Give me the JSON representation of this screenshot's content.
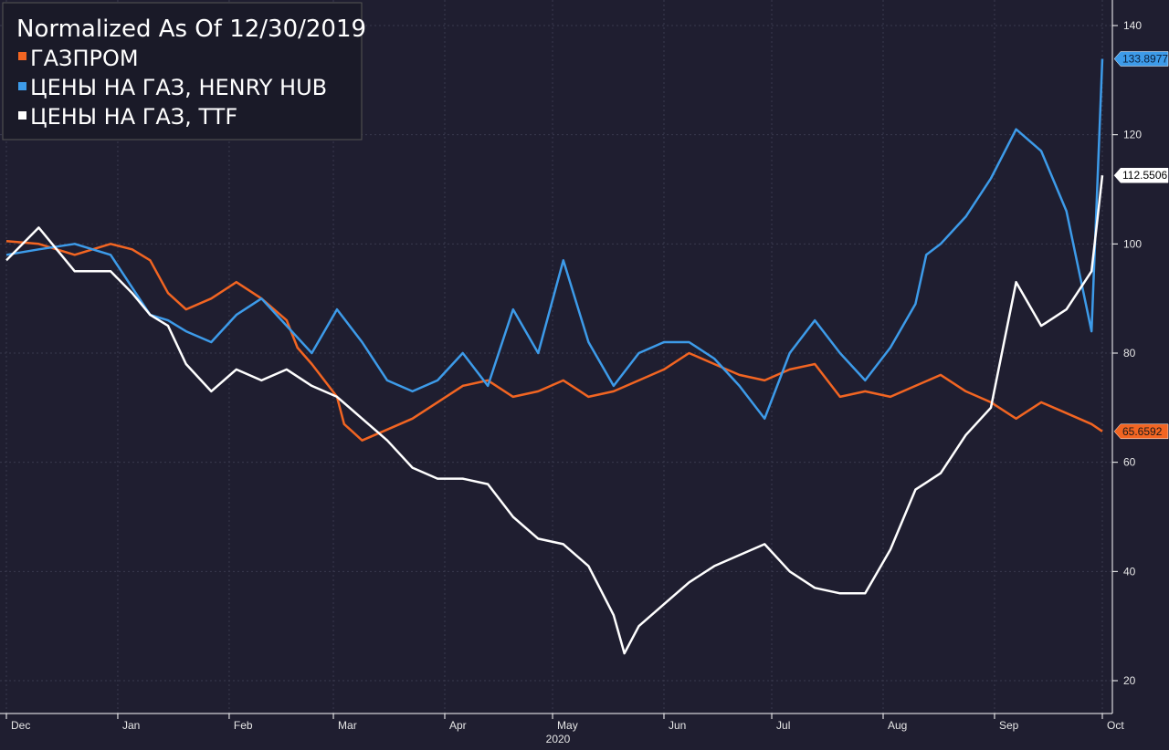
{
  "chart_data": {
    "type": "line",
    "title": "Normalized As Of 12/30/2019",
    "xlabel": "2020",
    "ylabel": "",
    "ylim": [
      15,
      145
    ],
    "yticks": [
      20,
      40,
      60,
      80,
      100,
      120,
      140
    ],
    "grid": true,
    "legend_position": "top-left",
    "x_ticks": [
      {
        "label": "Dec",
        "date": "2019-12-01"
      },
      {
        "label": "Jan",
        "date": "2020-01-01"
      },
      {
        "label": "Feb",
        "date": "2020-02-01"
      },
      {
        "label": "Mar",
        "date": "2020-03-01"
      },
      {
        "label": "Apr",
        "date": "2020-04-01"
      },
      {
        "label": "May",
        "date": "2020-05-01"
      },
      {
        "label": "Jun",
        "date": "2020-06-01"
      },
      {
        "label": "Jul",
        "date": "2020-07-01"
      },
      {
        "label": "Aug",
        "date": "2020-08-01"
      },
      {
        "label": "Sep",
        "date": "2020-09-01"
      },
      {
        "label": "Oct",
        "date": "2020-10-01"
      }
    ],
    "series": [
      {
        "name": "ГАЗПРОМ",
        "color": "#f26522",
        "last_value": "65.6592",
        "points": [
          [
            "2019-12-01",
            100.5
          ],
          [
            "2019-12-10",
            100
          ],
          [
            "2019-12-20",
            98
          ],
          [
            "2019-12-30",
            100
          ],
          [
            "2020-01-05",
            99
          ],
          [
            "2020-01-10",
            97
          ],
          [
            "2020-01-15",
            91
          ],
          [
            "2020-01-20",
            88
          ],
          [
            "2020-01-27",
            90
          ],
          [
            "2020-02-03",
            93
          ],
          [
            "2020-02-10",
            90
          ],
          [
            "2020-02-17",
            86
          ],
          [
            "2020-02-20",
            81
          ],
          [
            "2020-02-24",
            78
          ],
          [
            "2020-03-02",
            72
          ],
          [
            "2020-03-04",
            67
          ],
          [
            "2020-03-09",
            64
          ],
          [
            "2020-03-16",
            66
          ],
          [
            "2020-03-23",
            68
          ],
          [
            "2020-03-30",
            71
          ],
          [
            "2020-04-06",
            74
          ],
          [
            "2020-04-13",
            75
          ],
          [
            "2020-04-20",
            72
          ],
          [
            "2020-04-27",
            73
          ],
          [
            "2020-05-04",
            75
          ],
          [
            "2020-05-11",
            72
          ],
          [
            "2020-05-18",
            73
          ],
          [
            "2020-05-25",
            75
          ],
          [
            "2020-06-01",
            77
          ],
          [
            "2020-06-08",
            80
          ],
          [
            "2020-06-15",
            78
          ],
          [
            "2020-06-22",
            76
          ],
          [
            "2020-06-29",
            75
          ],
          [
            "2020-07-06",
            77
          ],
          [
            "2020-07-13",
            78
          ],
          [
            "2020-07-20",
            72
          ],
          [
            "2020-07-27",
            73
          ],
          [
            "2020-08-03",
            72
          ],
          [
            "2020-08-10",
            74
          ],
          [
            "2020-08-17",
            76
          ],
          [
            "2020-08-24",
            73
          ],
          [
            "2020-08-31",
            71
          ],
          [
            "2020-09-07",
            68
          ],
          [
            "2020-09-14",
            71
          ],
          [
            "2020-09-21",
            69
          ],
          [
            "2020-09-28",
            67
          ],
          [
            "2020-10-01",
            65.6592
          ]
        ]
      },
      {
        "name": "ЦЕНЫ НА ГАЗ, HENRY HUB",
        "color": "#3d9be9",
        "last_value": "133.8977",
        "points": [
          [
            "2019-12-01",
            98
          ],
          [
            "2019-12-10",
            99
          ],
          [
            "2019-12-20",
            100
          ],
          [
            "2019-12-30",
            98
          ],
          [
            "2020-01-05",
            92
          ],
          [
            "2020-01-10",
            87
          ],
          [
            "2020-01-15",
            86
          ],
          [
            "2020-01-20",
            84
          ],
          [
            "2020-01-27",
            82
          ],
          [
            "2020-02-03",
            87
          ],
          [
            "2020-02-10",
            90
          ],
          [
            "2020-02-17",
            85
          ],
          [
            "2020-02-24",
            80
          ],
          [
            "2020-03-02",
            88
          ],
          [
            "2020-03-09",
            82
          ],
          [
            "2020-03-16",
            75
          ],
          [
            "2020-03-23",
            73
          ],
          [
            "2020-03-30",
            75
          ],
          [
            "2020-04-06",
            80
          ],
          [
            "2020-04-13",
            74
          ],
          [
            "2020-04-20",
            88
          ],
          [
            "2020-04-27",
            80
          ],
          [
            "2020-05-04",
            97
          ],
          [
            "2020-05-11",
            82
          ],
          [
            "2020-05-18",
            74
          ],
          [
            "2020-05-25",
            80
          ],
          [
            "2020-06-01",
            82
          ],
          [
            "2020-06-08",
            82
          ],
          [
            "2020-06-15",
            79
          ],
          [
            "2020-06-22",
            74
          ],
          [
            "2020-06-29",
            68
          ],
          [
            "2020-07-06",
            80
          ],
          [
            "2020-07-13",
            86
          ],
          [
            "2020-07-20",
            80
          ],
          [
            "2020-07-27",
            75
          ],
          [
            "2020-08-03",
            81
          ],
          [
            "2020-08-10",
            89
          ],
          [
            "2020-08-13",
            98
          ],
          [
            "2020-08-17",
            100
          ],
          [
            "2020-08-24",
            105
          ],
          [
            "2020-08-31",
            112
          ],
          [
            "2020-09-07",
            121
          ],
          [
            "2020-09-14",
            117
          ],
          [
            "2020-09-21",
            106
          ],
          [
            "2020-09-28",
            84
          ],
          [
            "2020-10-01",
            133.8977
          ]
        ]
      },
      {
        "name": "ЦЕНЫ НА ГАЗ, TTF",
        "color": "#ffffff",
        "last_value": "112.5506",
        "points": [
          [
            "2019-12-01",
            97
          ],
          [
            "2019-12-10",
            103
          ],
          [
            "2019-12-20",
            95
          ],
          [
            "2019-12-30",
            95
          ],
          [
            "2020-01-05",
            91
          ],
          [
            "2020-01-10",
            87
          ],
          [
            "2020-01-15",
            85
          ],
          [
            "2020-01-20",
            78
          ],
          [
            "2020-01-27",
            73
          ],
          [
            "2020-02-03",
            77
          ],
          [
            "2020-02-10",
            75
          ],
          [
            "2020-02-17",
            77
          ],
          [
            "2020-02-24",
            74
          ],
          [
            "2020-03-02",
            72
          ],
          [
            "2020-03-09",
            68
          ],
          [
            "2020-03-16",
            64
          ],
          [
            "2020-03-23",
            59
          ],
          [
            "2020-03-30",
            57
          ],
          [
            "2020-04-06",
            57
          ],
          [
            "2020-04-13",
            56
          ],
          [
            "2020-04-20",
            50
          ],
          [
            "2020-04-27",
            46
          ],
          [
            "2020-05-04",
            45
          ],
          [
            "2020-05-11",
            41
          ],
          [
            "2020-05-18",
            32
          ],
          [
            "2020-05-21",
            25
          ],
          [
            "2020-05-25",
            30
          ],
          [
            "2020-06-01",
            34
          ],
          [
            "2020-06-08",
            38
          ],
          [
            "2020-06-15",
            41
          ],
          [
            "2020-06-22",
            43
          ],
          [
            "2020-06-29",
            45
          ],
          [
            "2020-07-06",
            40
          ],
          [
            "2020-07-13",
            37
          ],
          [
            "2020-07-20",
            36
          ],
          [
            "2020-07-27",
            36
          ],
          [
            "2020-08-03",
            44
          ],
          [
            "2020-08-10",
            55
          ],
          [
            "2020-08-17",
            58
          ],
          [
            "2020-08-24",
            65
          ],
          [
            "2020-08-31",
            70
          ],
          [
            "2020-09-07",
            93
          ],
          [
            "2020-09-14",
            85
          ],
          [
            "2020-09-21",
            88
          ],
          [
            "2020-09-28",
            95
          ],
          [
            "2020-10-01",
            112.5506
          ]
        ]
      }
    ]
  }
}
